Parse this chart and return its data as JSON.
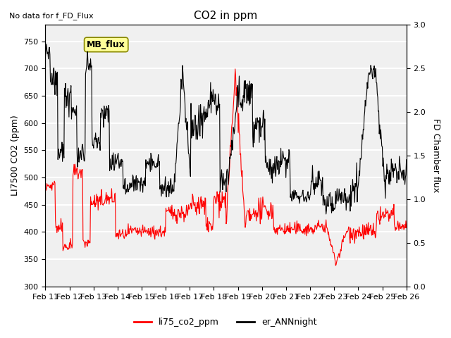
{
  "title": "CO2 in ppm",
  "ylabel_left": "LI7500 CO2 (ppm)",
  "ylabel_right": "FD Chamber flux",
  "text_no_data": "No data for f_FD_Flux",
  "text_mb_flux": "MB_flux",
  "ylim_left": [
    300,
    780
  ],
  "ylim_right": [
    0.0,
    3.0
  ],
  "yticks_left": [
    300,
    350,
    400,
    450,
    500,
    550,
    600,
    650,
    700,
    750
  ],
  "yticks_right": [
    0.0,
    0.5,
    1.0,
    1.5,
    2.0,
    2.5,
    3.0
  ],
  "x_tick_labels": [
    "Feb 11",
    "Feb 12",
    "Feb 13",
    "Feb 14",
    "Feb 15",
    "Feb 16",
    "Feb 17",
    "Feb 18",
    "Feb 19",
    "Feb 20",
    "Feb 21",
    "Feb 22",
    "Feb 23",
    "Feb 24",
    "Feb 25",
    "Feb 26"
  ],
  "color_red": "#FF0000",
  "color_black": "#000000",
  "legend_label_red": "li75_co2_ppm",
  "legend_label_black": "er_ANNnight",
  "bg_color": "#F0F0F0",
  "plot_bg_color": "#FFFFFF",
  "grid_color": "#FFFFFF",
  "mb_flux_box_color": "#FFFF99",
  "mb_flux_box_edge": "#888800"
}
